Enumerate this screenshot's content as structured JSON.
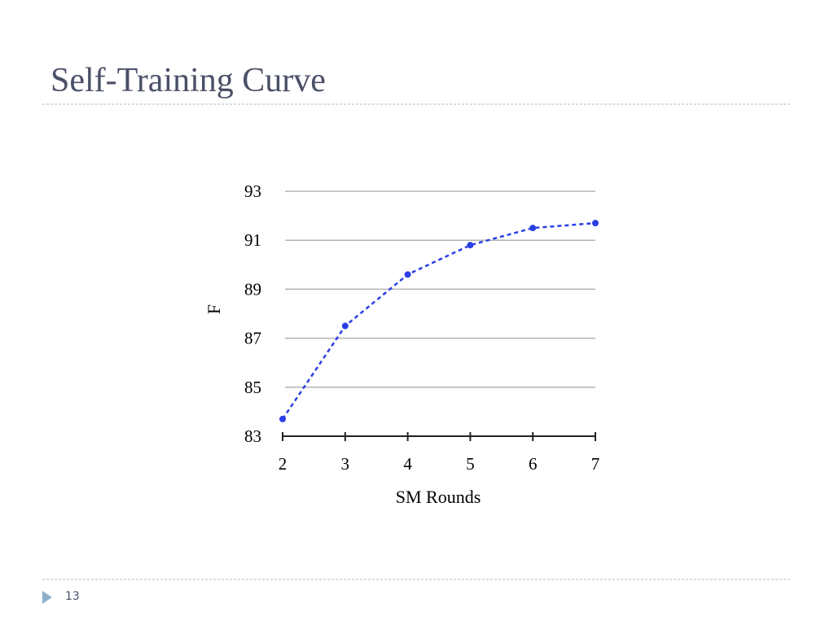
{
  "slide": {
    "title": "Self-Training Curve",
    "page_number": "13"
  },
  "chart_data": {
    "type": "line",
    "xlabel": "SM Rounds",
    "ylabel": "F",
    "x": [
      2,
      3,
      4,
      5,
      6,
      7
    ],
    "values": [
      83.7,
      87.5,
      89.6,
      90.8,
      91.5,
      91.7
    ],
    "color": "#2b3fe6",
    "dashed": true,
    "markers": true,
    "xlim": [
      2,
      7
    ],
    "xticks": [
      2,
      3,
      4,
      5,
      6,
      7
    ],
    "ylim": [
      83,
      93
    ],
    "yticks": [
      83,
      85,
      87,
      89,
      91,
      93
    ],
    "grid": true
  }
}
